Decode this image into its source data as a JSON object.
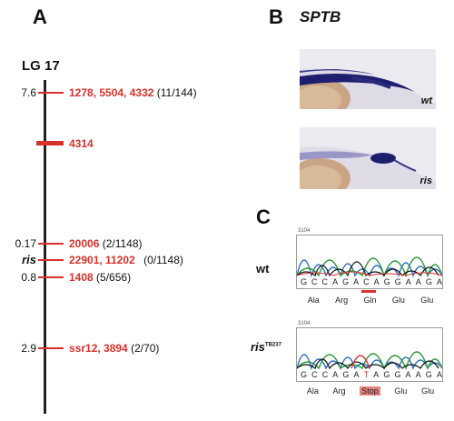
{
  "panels": {
    "a": "A",
    "b": "B",
    "c": "C"
  },
  "map": {
    "title": "LG 17",
    "rows": [
      {
        "dist": "7.6",
        "markers": "1278, 5504, 4332",
        "count": "(11/144)"
      },
      {
        "dist": "",
        "markers": "4314",
        "count": ""
      },
      {
        "dist": "0.17",
        "markers": "20006",
        "count": "(2/1148)"
      },
      {
        "dist": "ris",
        "markers": "22901, 11202",
        "count": "(0/1148)"
      },
      {
        "dist": "0.8",
        "markers": "1408",
        "count": "(5/656)"
      },
      {
        "dist": "2.9",
        "markers": "ssr12, 3894",
        "count": "(2/70)"
      }
    ]
  },
  "expression": {
    "gene": "SPTB",
    "wt_label": "wt",
    "mut_label": "ris"
  },
  "sequencing": {
    "wt_label": "wt",
    "mut_label": "ris",
    "mut_superscript": "TB237",
    "tiny_wt": "3104",
    "tiny_mut": "3104",
    "wt_bases": [
      "G",
      "C",
      "C",
      "A",
      "G",
      "A",
      "C",
      "A",
      "G",
      "G",
      "A",
      "A",
      "G",
      "A"
    ],
    "mut_bases": [
      "G",
      "C",
      "C",
      "A",
      "G",
      "A",
      "T",
      "A",
      "G",
      "G",
      "A",
      "A",
      "G",
      "A"
    ],
    "wt_aa": [
      "Ala",
      "Arg",
      "Gln",
      "Glu",
      "Glu"
    ],
    "mut_aa": [
      "Ala",
      "Arg",
      "Stop",
      "Glu",
      "Glu"
    ]
  },
  "colors": {
    "marker_red": "#d6322b",
    "stop_bg": "#e8837b",
    "stain": "#1e1e6e"
  }
}
